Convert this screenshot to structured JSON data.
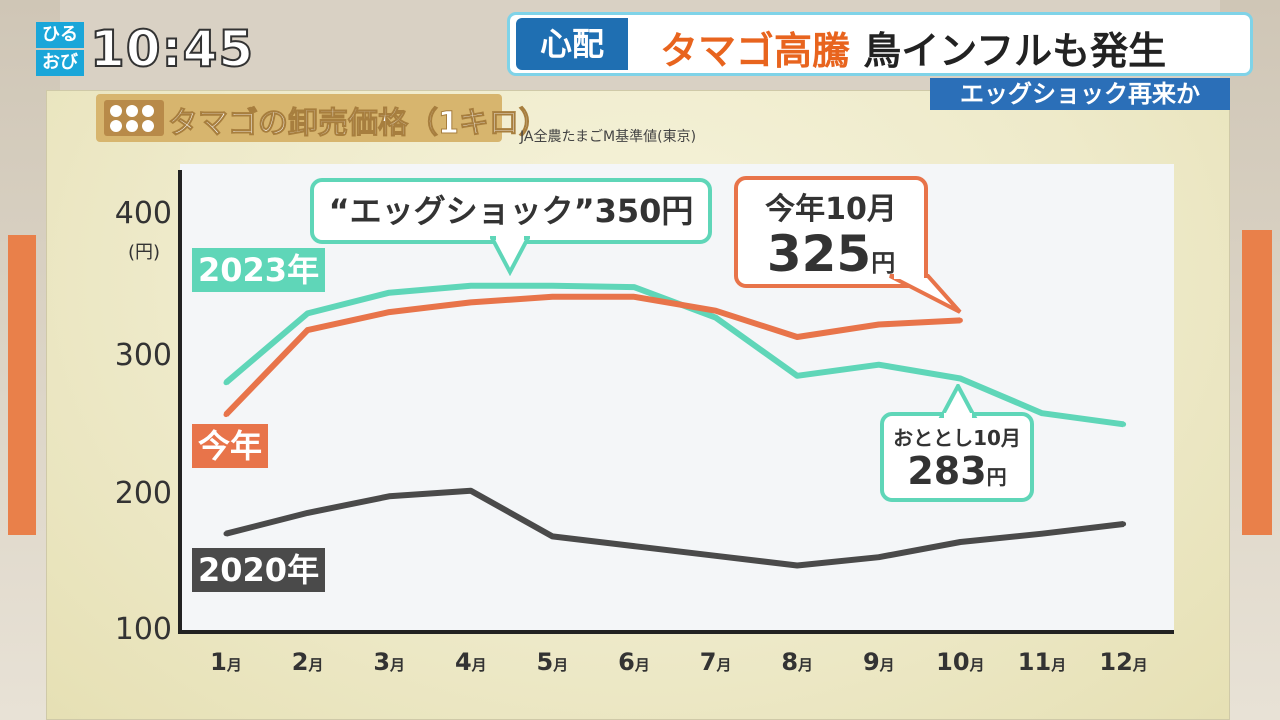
{
  "broadcast": {
    "logo_lines": [
      "ひる",
      "おび"
    ],
    "clock": "10:45",
    "tag": "心配",
    "headline_highlight": "タマゴ高騰",
    "headline_rest": "鳥インフルも発生",
    "subheadline": "エッグショック再来か"
  },
  "chart_title": "タマゴの卸売価格（1キロ）",
  "source_note": "JA全農たまごM基準値(東京)",
  "y_unit": "(円)",
  "y_ticks": [
    "400",
    "300",
    "200",
    "100"
  ],
  "x_ticks": [
    "1",
    "2",
    "3",
    "4",
    "5",
    "6",
    "7",
    "8",
    "9",
    "10",
    "11",
    "12"
  ],
  "x_tick_unit": "月",
  "labels": {
    "y2023": "2023年",
    "this_year": "今年",
    "y2020": "2020年"
  },
  "callouts": {
    "egg_shock": "“エッグショック”350円",
    "this_year_label": "今年10月",
    "this_year_value": "325",
    "this_year_unit": "円",
    "two_years_label": "おととし10月",
    "two_years_value": "283",
    "two_years_unit": "円"
  },
  "colors": {
    "s2023": "#5fd6b8",
    "this_year": "#e8744a",
    "s2020": "#4a4a4a",
    "tag_bg": "#1f6fb2",
    "headline_highlight": "#e8641e"
  },
  "chart_data": {
    "type": "line",
    "title": "タマゴの卸売価格（1キロ）",
    "ylabel": "(円)",
    "ylim": [
      100,
      440
    ],
    "yticks": [
      100,
      200,
      300,
      400
    ],
    "categories": [
      "1月",
      "2月",
      "3月",
      "4月",
      "5月",
      "6月",
      "7月",
      "8月",
      "9月",
      "10月",
      "11月",
      "12月"
    ],
    "series": [
      {
        "name": "2023年",
        "values": [
          280,
          330,
          345,
          350,
          350,
          349,
          327,
          285,
          293,
          283,
          258,
          250
        ]
      },
      {
        "name": "今年",
        "values": [
          257,
          318,
          331,
          338,
          342,
          342,
          332,
          313,
          322,
          325,
          null,
          null
        ]
      },
      {
        "name": "2020年",
        "values": [
          171,
          186,
          198,
          202,
          169,
          162,
          155,
          148,
          154,
          165,
          171,
          178
        ]
      }
    ],
    "annotations": [
      {
        "text": "“エッグショック”350円",
        "x": "4月",
        "y": 350
      },
      {
        "text": "今年10月 325円",
        "x": "10月",
        "y": 325
      },
      {
        "text": "おととし10月 283円",
        "x": "10月",
        "y": 283
      }
    ],
    "grid": false,
    "legend": "inline-labels"
  }
}
